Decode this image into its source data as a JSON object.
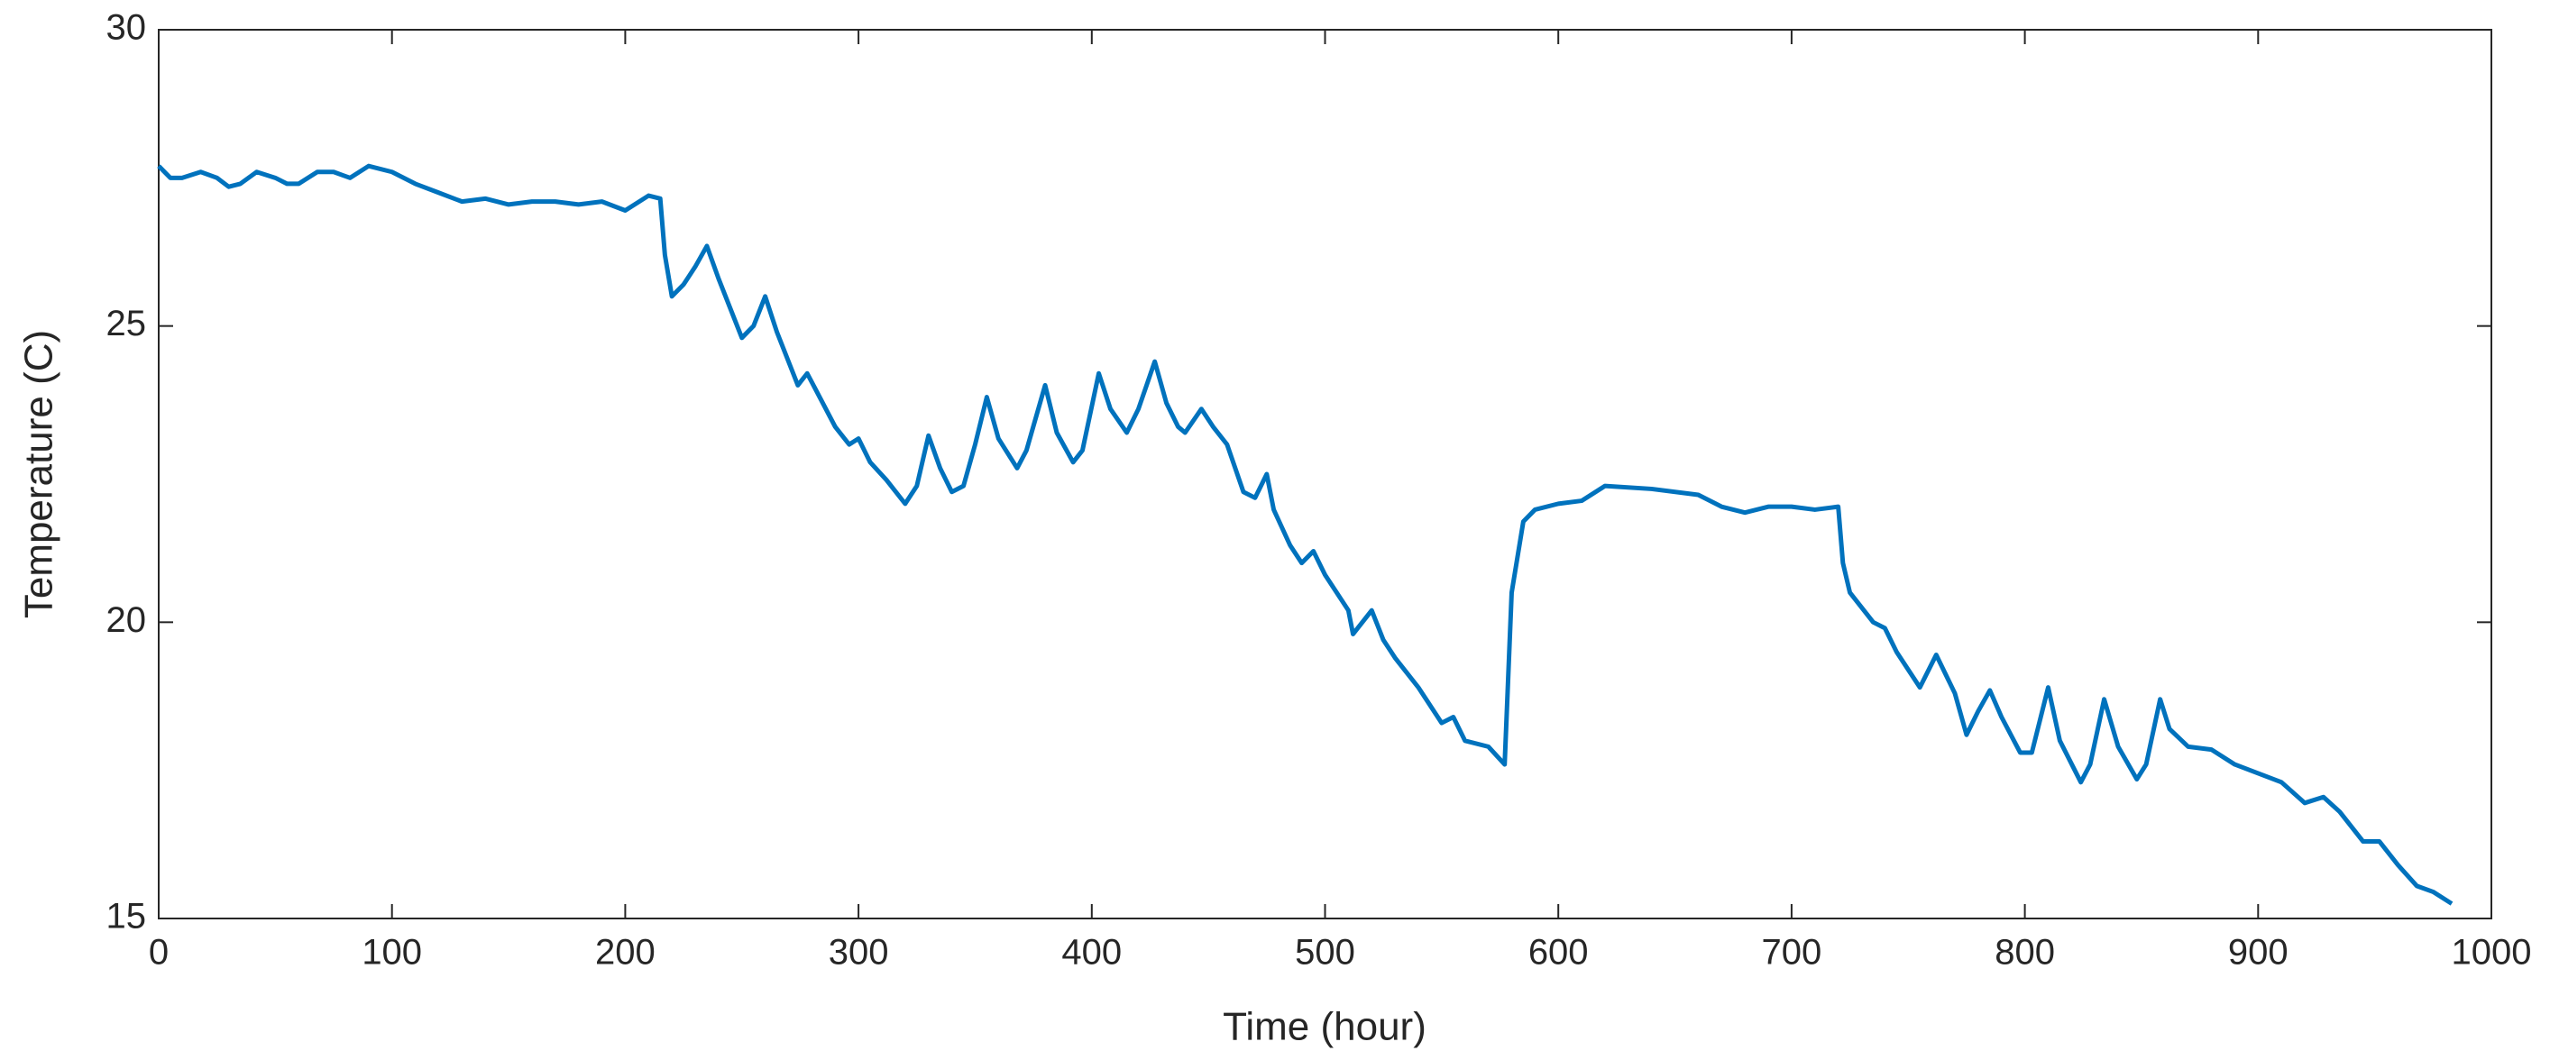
{
  "chart_data": {
    "type": "line",
    "xlabel": "Time (hour)",
    "ylabel": "Temperature (C)",
    "xlim": [
      0,
      1000
    ],
    "xticks": [
      0,
      100,
      200,
      300,
      400,
      500,
      600,
      700,
      800,
      900,
      1000
    ],
    "ylim": [
      15,
      30
    ],
    "yticks": [
      15,
      20,
      25,
      30
    ],
    "series": [
      {
        "color": "#0072bd",
        "x": [
          0,
          5,
          10,
          18,
          25,
          30,
          35,
          42,
          50,
          55,
          60,
          68,
          75,
          82,
          90,
          100,
          110,
          120,
          130,
          140,
          150,
          160,
          170,
          180,
          190,
          200,
          210,
          215,
          217,
          220,
          225,
          230,
          235,
          240,
          245,
          250,
          255,
          260,
          265,
          270,
          274,
          278,
          282,
          290,
          296,
          300,
          305,
          312,
          320,
          325,
          330,
          335,
          340,
          345,
          350,
          355,
          360,
          368,
          372,
          380,
          385,
          392,
          396,
          403,
          408,
          415,
          420,
          427,
          432,
          437,
          440,
          447,
          452,
          458,
          465,
          470,
          475,
          478,
          485,
          490,
          495,
          500,
          510,
          512,
          520,
          525,
          530,
          540,
          550,
          555,
          560,
          570,
          577,
          580,
          585,
          590,
          600,
          610,
          620,
          640,
          660,
          670,
          680,
          690,
          700,
          710,
          720,
          722,
          725,
          735,
          740,
          745,
          755,
          762,
          770,
          775,
          780,
          785,
          790,
          798,
          803,
          810,
          815,
          824,
          828,
          834,
          840,
          848,
          852,
          858,
          862,
          870,
          880,
          890,
          900,
          910,
          920,
          928,
          935,
          945,
          952,
          960,
          968,
          975,
          983
        ],
        "values": [
          27.7,
          27.5,
          27.5,
          27.6,
          27.5,
          27.35,
          27.4,
          27.6,
          27.5,
          27.4,
          27.4,
          27.6,
          27.6,
          27.5,
          27.7,
          27.6,
          27.4,
          27.25,
          27.1,
          27.15,
          27.05,
          27.1,
          27.1,
          27.05,
          27.1,
          26.95,
          27.2,
          27.15,
          26.2,
          25.5,
          25.7,
          26.0,
          26.35,
          25.8,
          25.3,
          24.8,
          25.0,
          25.5,
          24.9,
          24.4,
          24.0,
          24.2,
          23.9,
          23.3,
          23.0,
          23.1,
          22.7,
          22.4,
          22.0,
          22.3,
          23.15,
          22.6,
          22.2,
          22.3,
          23.0,
          23.8,
          23.1,
          22.6,
          22.9,
          24.0,
          23.2,
          22.7,
          22.9,
          24.2,
          23.6,
          23.2,
          23.6,
          24.4,
          23.7,
          23.3,
          23.2,
          23.6,
          23.3,
          23.0,
          22.2,
          22.1,
          22.5,
          21.9,
          21.3,
          21.0,
          21.2,
          20.8,
          20.2,
          19.8,
          20.2,
          19.7,
          19.4,
          18.9,
          18.3,
          18.4,
          18.0,
          17.9,
          17.6,
          20.5,
          21.7,
          21.9,
          22.0,
          22.05,
          22.3,
          22.25,
          22.15,
          21.95,
          21.85,
          21.95,
          21.95,
          21.9,
          21.95,
          21.0,
          20.5,
          20.0,
          19.9,
          19.5,
          18.9,
          19.45,
          18.8,
          18.1,
          18.5,
          18.85,
          18.4,
          17.8,
          17.8,
          18.9,
          18.0,
          17.3,
          17.6,
          18.7,
          17.9,
          17.35,
          17.6,
          18.7,
          18.2,
          17.9,
          17.85,
          17.6,
          17.45,
          17.3,
          16.95,
          17.05,
          16.8,
          16.3,
          16.3,
          15.9,
          15.55,
          15.45,
          15.25
        ]
      }
    ]
  }
}
